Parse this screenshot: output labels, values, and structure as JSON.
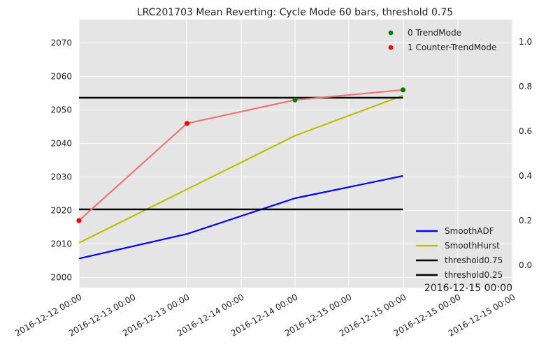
{
  "chart_data": {
    "type": "line",
    "title": "LRC201703 Mean Reverting: Cycle Mode 60 bars, threshold 0.75",
    "xlabel": "",
    "ylabel": "",
    "x_categories": [
      "2016-12-12 00:00",
      "2016-12-13 00:00",
      "2016-12-14 00:00",
      "2016-12-15 00:00"
    ],
    "x_tick_labels": [
      "2016-12-12 00:00",
      "2016-12-13 00:00",
      "2016-12-13 00:00",
      "2016-12-14 00:00",
      "2016-12-14 00:00",
      "2016-12-15 00:00",
      "2016-12-15 00:00",
      "2016-12-15 00:00",
      "2016-12-15 00:00"
    ],
    "corner_label": "2016-12-15 00:00",
    "left_axis": {
      "ylim": [
        1997,
        2077
      ],
      "ticks": [
        2000,
        2010,
        2020,
        2030,
        2040,
        2050,
        2060,
        2070
      ]
    },
    "right_axis": {
      "ylim": [
        -0.1,
        1.1
      ],
      "ticks": [
        "0.0",
        "0.2",
        "0.4",
        "0.6",
        "0.8",
        "1.0"
      ]
    },
    "price_series": {
      "values": [
        2017,
        2046,
        2053,
        2056
      ],
      "color": "#f07470"
    },
    "mode_markers": [
      {
        "x_index": 0,
        "y": 2017,
        "mode": 1
      },
      {
        "x_index": 1,
        "y": 2046,
        "mode": 1
      },
      {
        "x_index": 2,
        "y": 2053,
        "mode": 0
      },
      {
        "x_index": 3,
        "y": 2056,
        "mode": 0
      }
    ],
    "right_series": [
      {
        "name": "SmoothADF",
        "color": "#0000ff",
        "values": [
          0.03,
          0.14,
          0.3,
          0.4
        ]
      },
      {
        "name": "SmoothHurst",
        "color": "#bfbf00",
        "values": [
          0.1,
          0.34,
          0.58,
          0.76
        ]
      },
      {
        "name": "threshold0.75",
        "color": "#000000",
        "values": [
          0.75,
          0.75,
          0.75,
          0.75
        ]
      },
      {
        "name": "threshold0.25",
        "color": "#000000",
        "values": [
          0.25,
          0.25,
          0.25,
          0.25
        ]
      }
    ],
    "legend_top": [
      {
        "label": "0 TrendMode",
        "color": "#008000"
      },
      {
        "label": "1 Counter-TrendMode",
        "color": "#ff0000"
      }
    ],
    "legend_bottom": [
      {
        "label": "SmoothADF",
        "color": "#0000ff"
      },
      {
        "label": "SmoothHurst",
        "color": "#bfbf00"
      },
      {
        "label": "threshold0.75",
        "color": "#000000"
      },
      {
        "label": "threshold0.25",
        "color": "#000000"
      }
    ],
    "legend_top_placement": "top-right",
    "legend_bottom_placement": "bottom-right",
    "grid": true,
    "background_color": "#e5e5e5"
  }
}
